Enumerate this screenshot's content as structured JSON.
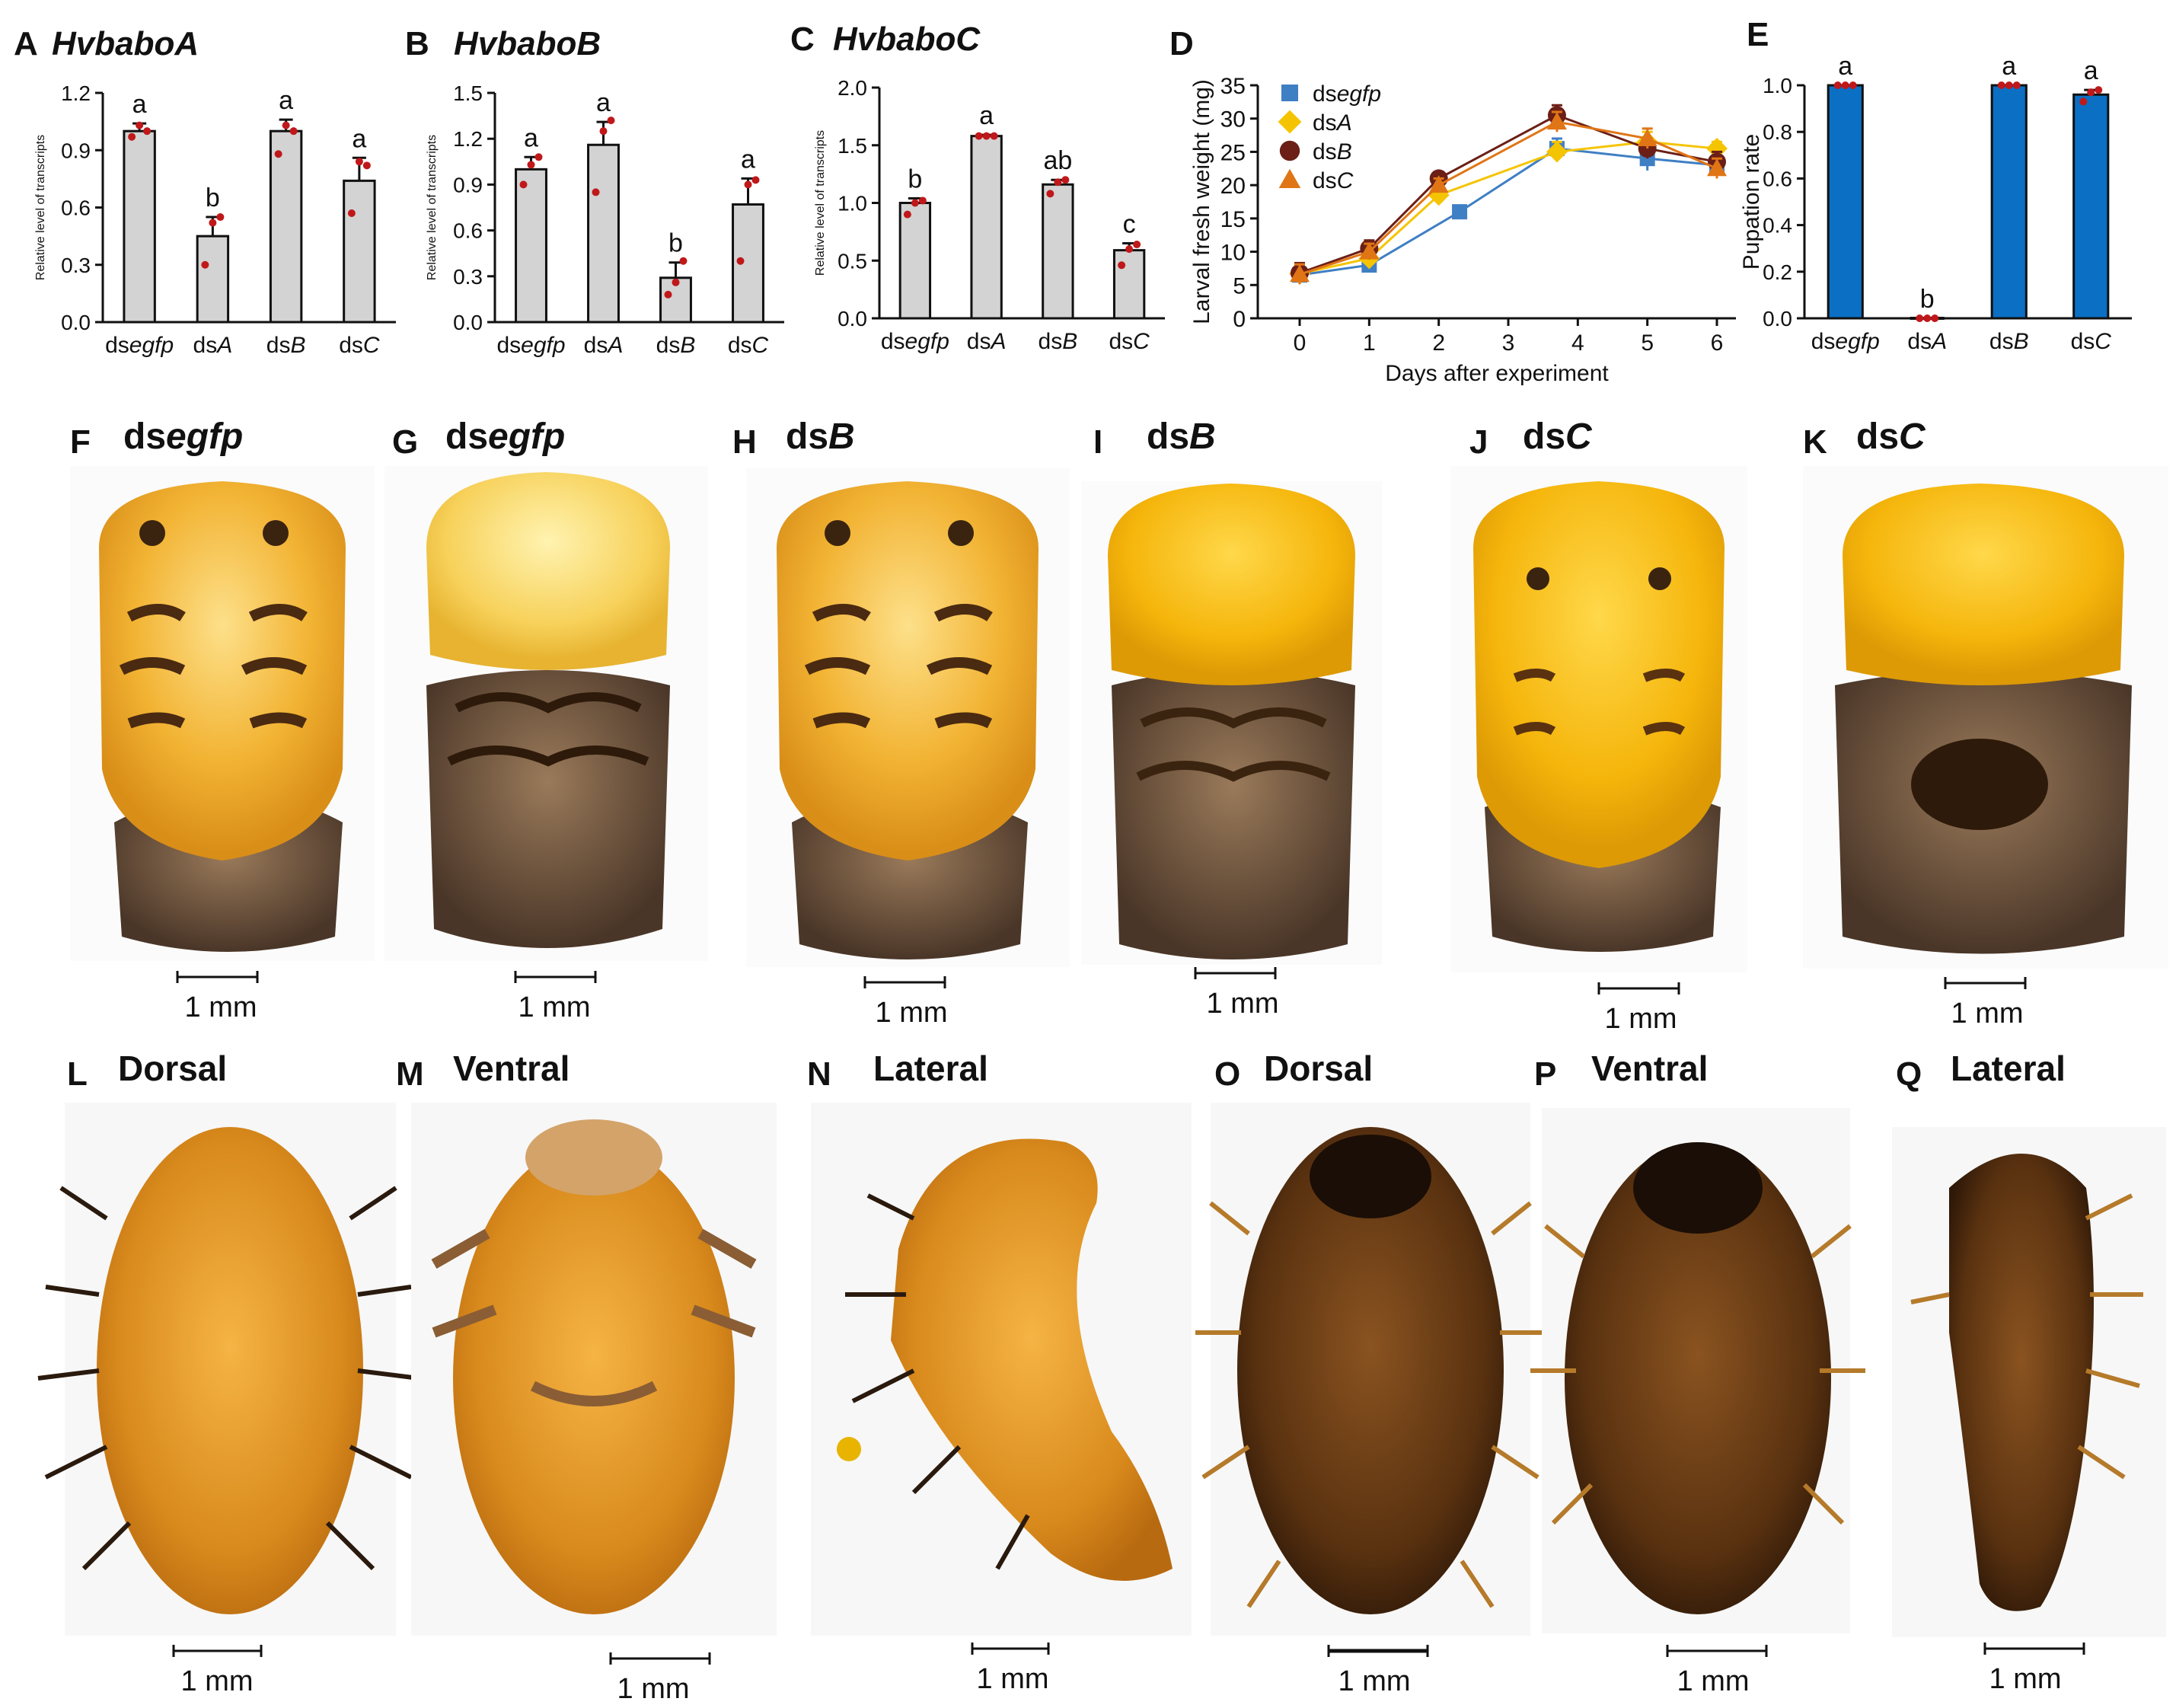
{
  "figure": {
    "panels_top": {
      "A": {
        "letter": "A",
        "gene": "HvbaboA"
      },
      "B": {
        "letter": "B",
        "gene": "HvbaboB"
      },
      "C": {
        "letter": "C",
        "gene": "HvbaboC"
      },
      "D": {
        "letter": "D"
      },
      "E": {
        "letter": "E"
      }
    },
    "photos_row1": [
      {
        "letter": "F",
        "prefix": "ds",
        "suffix": "egfp",
        "scale": "1 mm"
      },
      {
        "letter": "G",
        "prefix": "ds",
        "suffix": "egfp",
        "scale": "1 mm"
      },
      {
        "letter": "H",
        "prefix": "ds",
        "suffix": "B",
        "scale": "1 mm"
      },
      {
        "letter": "I",
        "prefix": "ds",
        "suffix": "B",
        "scale": "1 mm"
      },
      {
        "letter": "J",
        "prefix": "ds",
        "suffix": "C",
        "scale": "1 mm"
      },
      {
        "letter": "K",
        "prefix": "ds",
        "suffix": "C",
        "scale": "1 mm"
      }
    ],
    "photos_row2": [
      {
        "letter": "L",
        "view": "Dorsal",
        "scale": "1 mm"
      },
      {
        "letter": "M",
        "view": "Ventral",
        "scale": "1 mm"
      },
      {
        "letter": "N",
        "view": "Lateral",
        "scale": "1 mm"
      },
      {
        "letter": "O",
        "view": "Dorsal",
        "scale": "1 mm"
      },
      {
        "letter": "P",
        "view": "Ventral",
        "scale": "1 mm"
      },
      {
        "letter": "Q",
        "view": "Lateral",
        "scale": "1 mm"
      }
    ],
    "colors": {
      "bar_gray": "#d3d3d3",
      "bar_blue": "#0b6fc4",
      "dot_red": "#c0181a",
      "egfp": "#3f7fc4",
      "dsA": "#f5c400",
      "dsB": "#6b1f16",
      "dsC": "#e07516",
      "larva_yellow": "#f0b22a",
      "pupa_dark": "#6b3c14"
    }
  },
  "chart_data": [
    {
      "id": "A",
      "type": "bar",
      "title": "HvbaboA",
      "categories": [
        {
          "p": "ds",
          "s": "egfp"
        },
        {
          "p": "ds",
          "s": "A"
        },
        {
          "p": "ds",
          "s": "B"
        },
        {
          "p": "ds",
          "s": "C"
        }
      ],
      "values": [
        1.0,
        0.45,
        1.0,
        0.74
      ],
      "errors": [
        0.04,
        0.1,
        0.06,
        0.12
      ],
      "letters": [
        "a",
        "b",
        "a",
        "a"
      ],
      "points": [
        [
          0.97,
          1.03,
          1.0
        ],
        [
          0.3,
          0.52,
          0.55
        ],
        [
          0.88,
          1.03,
          1.0
        ],
        [
          0.57,
          0.84,
          0.82
        ]
      ],
      "ylim": [
        0,
        1.2
      ],
      "yticks": [
        "0.0",
        "0.3",
        "0.6",
        "0.9",
        "1.2"
      ],
      "ylabel": "Relative level of transcripts"
    },
    {
      "id": "B",
      "type": "bar",
      "title": "HvbaboB",
      "categories": [
        {
          "p": "ds",
          "s": "egfp"
        },
        {
          "p": "ds",
          "s": "A"
        },
        {
          "p": "ds",
          "s": "B"
        },
        {
          "p": "ds",
          "s": "C"
        }
      ],
      "values": [
        1.0,
        1.16,
        0.29,
        0.77
      ],
      "errors": [
        0.08,
        0.15,
        0.1,
        0.17
      ],
      "letters": [
        "a",
        "a",
        "b",
        "a"
      ],
      "points": [
        [
          0.9,
          1.03,
          1.08
        ],
        [
          0.85,
          1.25,
          1.32
        ],
        [
          0.18,
          0.26,
          0.4
        ],
        [
          0.4,
          0.9,
          0.93
        ]
      ],
      "ylim": [
        0,
        1.5
      ],
      "yticks": [
        "0.0",
        "0.3",
        "0.6",
        "0.9",
        "1.2",
        "1.5"
      ],
      "ylabel": "Relative level of transcripts"
    },
    {
      "id": "C",
      "type": "bar",
      "title": "HvbaboC",
      "categories": [
        {
          "p": "ds",
          "s": "egfp"
        },
        {
          "p": "ds",
          "s": "A"
        },
        {
          "p": "ds",
          "s": "B"
        },
        {
          "p": "ds",
          "s": "C"
        }
      ],
      "values": [
        1.0,
        1.58,
        1.16,
        0.59
      ],
      "errors": [
        0.04,
        0.01,
        0.04,
        0.06
      ],
      "letters": [
        "b",
        "a",
        "ab",
        "c"
      ],
      "points": [
        [
          0.9,
          1.0,
          1.02
        ],
        [
          1.58,
          1.58,
          1.58
        ],
        [
          1.08,
          1.18,
          1.2
        ],
        [
          0.46,
          0.6,
          0.64
        ]
      ],
      "ylim": [
        0,
        2.0
      ],
      "yticks": [
        "0.0",
        "0.5",
        "1.0",
        "1.5",
        "2.0"
      ],
      "ylabel": "Relative level of transcripts"
    },
    {
      "id": "D",
      "type": "line",
      "x": [
        0,
        1,
        2,
        3,
        4,
        5,
        6
      ],
      "xticks": [
        "0",
        "1",
        "2",
        "3",
        "4",
        "5",
        "6"
      ],
      "series": [
        {
          "name_prefix": "ds",
          "name_suffix": "egfp",
          "marker": "square",
          "color_key": "egfp",
          "x": [
            0,
            1,
            2.3,
            3.7,
            5,
            6
          ],
          "values": [
            6.5,
            8,
            16,
            25.5,
            24,
            23
          ],
          "errors": [
            1.2,
            1,
            0,
            1.5,
            1.8,
            1.5
          ]
        },
        {
          "name_prefix": "ds",
          "name_suffix": "A",
          "marker": "diamond",
          "color_key": "dsA",
          "x": [
            0,
            1,
            2,
            3.7,
            5,
            6
          ],
          "values": [
            6.7,
            9,
            18.5,
            25,
            26.5,
            25.5
          ],
          "errors": [
            1.5,
            1,
            1,
            1.5,
            1.5,
            1
          ]
        },
        {
          "name_prefix": "ds",
          "name_suffix": "B",
          "marker": "circle",
          "color_key": "dsB",
          "x": [
            0,
            1,
            2,
            3.7,
            5,
            6
          ],
          "values": [
            6.8,
            10.5,
            21,
            30.5,
            25.5,
            23.5
          ],
          "errors": [
            1.5,
            1.2,
            1,
            1.5,
            1.5,
            1.5
          ]
        },
        {
          "name_prefix": "ds",
          "name_suffix": "C",
          "marker": "triangle",
          "color_key": "dsC",
          "x": [
            0,
            1,
            2,
            3.7,
            5,
            6
          ],
          "values": [
            6.6,
            10,
            20,
            29.5,
            27,
            22.5
          ],
          "errors": [
            1.5,
            1.2,
            1,
            1.5,
            1.5,
            1.5
          ]
        }
      ],
      "ylim": [
        0,
        35
      ],
      "yticks": [
        "0",
        "5",
        "10",
        "15",
        "20",
        "25",
        "30",
        "35"
      ],
      "xlabel": "Days after experiment",
      "ylabel": "Larval fresh weight (mg)",
      "legend": "top-left"
    },
    {
      "id": "E",
      "type": "bar",
      "categories": [
        {
          "p": "ds",
          "s": "egfp"
        },
        {
          "p": "ds",
          "s": "A"
        },
        {
          "p": "ds",
          "s": "B"
        },
        {
          "p": "ds",
          "s": "C"
        }
      ],
      "values": [
        1.0,
        0.0,
        1.0,
        0.96
      ],
      "errors": [
        0.0,
        0.0,
        0.0,
        0.02
      ],
      "letters": [
        "a",
        "b",
        "a",
        "a"
      ],
      "points": [
        [
          1.0,
          1.0,
          1.0
        ],
        [
          0.0,
          0.0,
          0.0
        ],
        [
          1.0,
          1.0,
          1.0
        ],
        [
          0.93,
          0.97,
          0.98
        ]
      ],
      "ylim": [
        0,
        1.0
      ],
      "yticks": [
        "0.0",
        "0.2",
        "0.4",
        "0.6",
        "0.8",
        "1.0"
      ],
      "ylabel": "Pupation rate"
    }
  ]
}
